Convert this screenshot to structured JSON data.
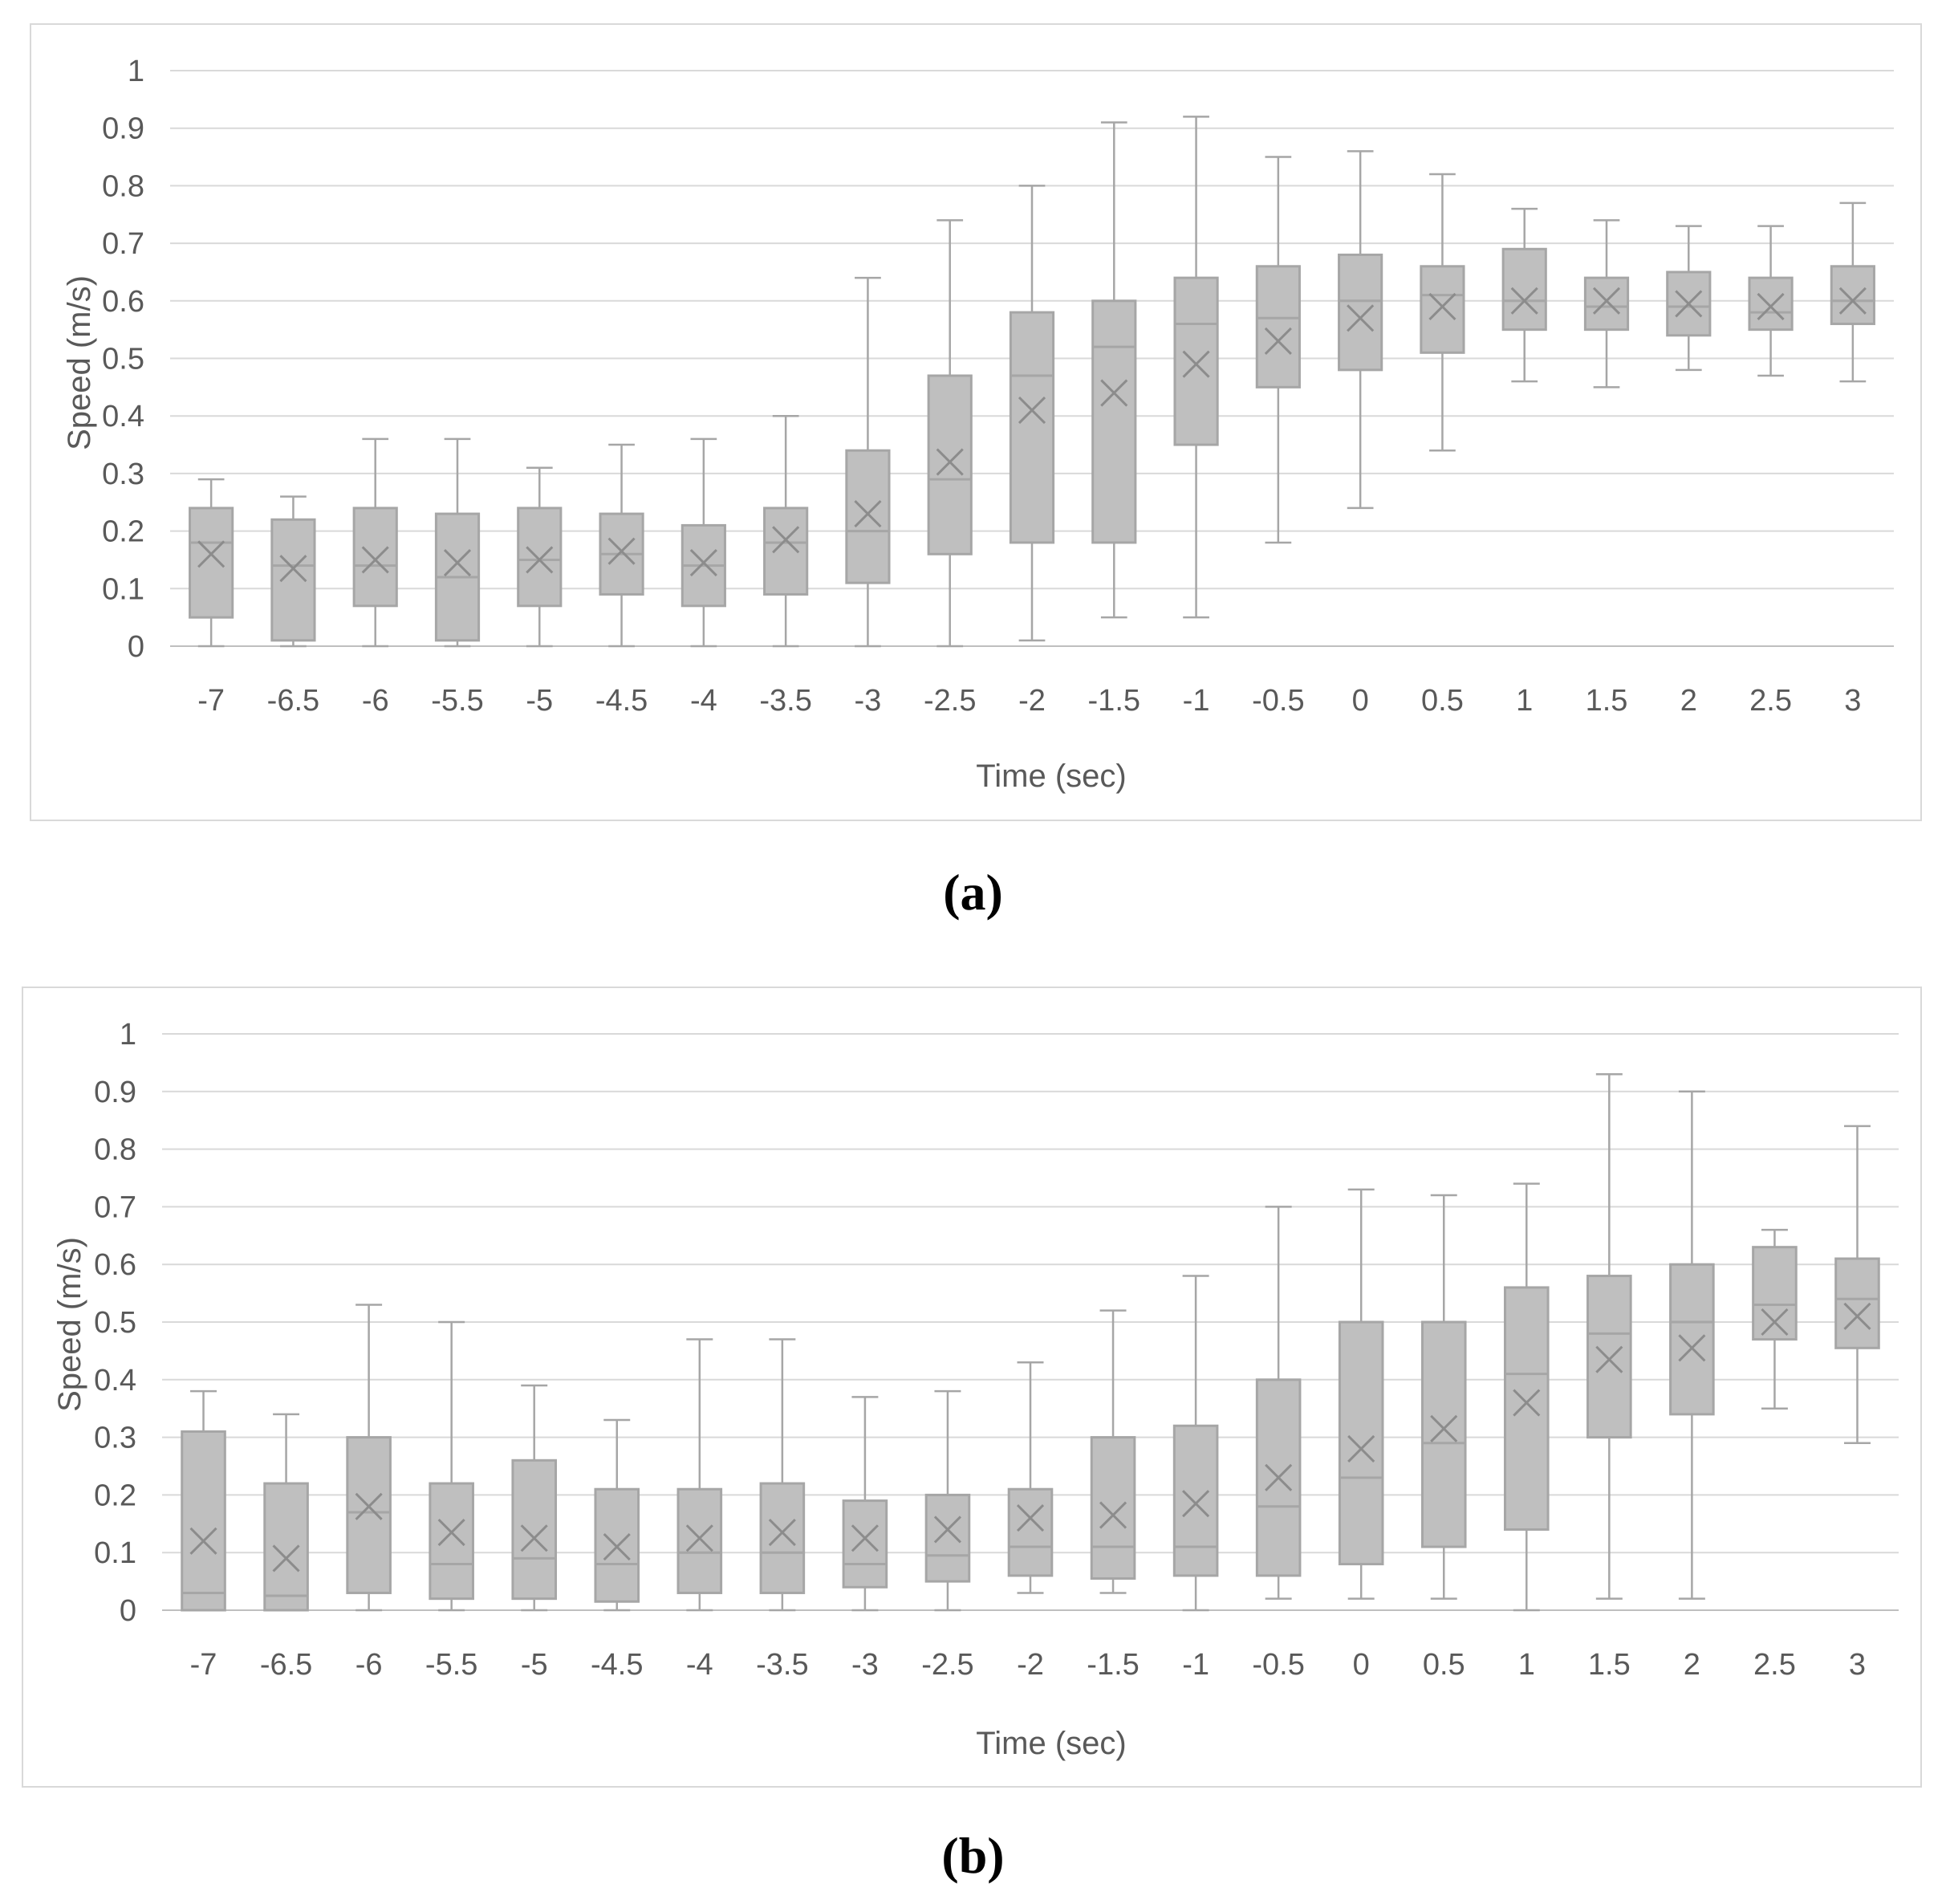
{
  "figure": {
    "captions": [
      "(a)",
      "(b)"
    ]
  },
  "chart_data": [
    {
      "type": "boxplot",
      "panel": "a",
      "xlabel": "Time (sec)",
      "ylabel": "Speed (m/s)",
      "ylim": [
        0,
        1
      ],
      "yticks": [
        "0",
        "0.1",
        "0.2",
        "0.3",
        "0.4",
        "0.5",
        "0.6",
        "0.7",
        "0.8",
        "0.9",
        "1"
      ],
      "grid": true,
      "categories": [
        "-7",
        "-6.5",
        "-6",
        "-5.5",
        "-5",
        "-4.5",
        "-4",
        "-3.5",
        "-3",
        "-2.5",
        "-2",
        "-1.5",
        "-1",
        "-0.5",
        "0",
        "0.5",
        "1",
        "1.5",
        "2",
        "2.5",
        "3"
      ],
      "boxes": [
        {
          "min": 0.0,
          "q1": 0.05,
          "median": 0.18,
          "q3": 0.24,
          "max": 0.29,
          "mean": 0.16
        },
        {
          "min": 0.0,
          "q1": 0.01,
          "median": 0.14,
          "q3": 0.22,
          "max": 0.26,
          "mean": 0.135
        },
        {
          "min": 0.0,
          "q1": 0.07,
          "median": 0.14,
          "q3": 0.24,
          "max": 0.36,
          "mean": 0.15
        },
        {
          "min": 0.0,
          "q1": 0.01,
          "median": 0.12,
          "q3": 0.23,
          "max": 0.36,
          "mean": 0.145
        },
        {
          "min": 0.0,
          "q1": 0.07,
          "median": 0.15,
          "q3": 0.24,
          "max": 0.31,
          "mean": 0.15
        },
        {
          "min": 0.0,
          "q1": 0.09,
          "median": 0.16,
          "q3": 0.23,
          "max": 0.35,
          "mean": 0.165
        },
        {
          "min": 0.0,
          "q1": 0.07,
          "median": 0.14,
          "q3": 0.21,
          "max": 0.36,
          "mean": 0.145
        },
        {
          "min": 0.0,
          "q1": 0.09,
          "median": 0.18,
          "q3": 0.24,
          "max": 0.4,
          "mean": 0.185
        },
        {
          "min": 0.0,
          "q1": 0.11,
          "median": 0.2,
          "q3": 0.34,
          "max": 0.64,
          "mean": 0.23
        },
        {
          "min": 0.0,
          "q1": 0.16,
          "median": 0.29,
          "q3": 0.47,
          "max": 0.74,
          "mean": 0.32
        },
        {
          "min": 0.01,
          "q1": 0.18,
          "median": 0.47,
          "q3": 0.58,
          "max": 0.8,
          "mean": 0.41
        },
        {
          "min": 0.05,
          "q1": 0.18,
          "median": 0.52,
          "q3": 0.6,
          "max": 0.91,
          "mean": 0.44
        },
        {
          "min": 0.05,
          "q1": 0.35,
          "median": 0.56,
          "q3": 0.64,
          "max": 0.92,
          "mean": 0.49
        },
        {
          "min": 0.18,
          "q1": 0.45,
          "median": 0.57,
          "q3": 0.66,
          "max": 0.85,
          "mean": 0.53
        },
        {
          "min": 0.24,
          "q1": 0.48,
          "median": 0.6,
          "q3": 0.68,
          "max": 0.86,
          "mean": 0.57
        },
        {
          "min": 0.34,
          "q1": 0.51,
          "median": 0.61,
          "q3": 0.66,
          "max": 0.82,
          "mean": 0.59
        },
        {
          "min": 0.46,
          "q1": 0.55,
          "median": 0.6,
          "q3": 0.69,
          "max": 0.76,
          "mean": 0.6
        },
        {
          "min": 0.45,
          "q1": 0.55,
          "median": 0.59,
          "q3": 0.64,
          "max": 0.74,
          "mean": 0.6
        },
        {
          "min": 0.48,
          "q1": 0.54,
          "median": 0.59,
          "q3": 0.65,
          "max": 0.73,
          "mean": 0.595
        },
        {
          "min": 0.47,
          "q1": 0.55,
          "median": 0.58,
          "q3": 0.64,
          "max": 0.73,
          "mean": 0.59
        },
        {
          "min": 0.46,
          "q1": 0.56,
          "median": 0.6,
          "q3": 0.66,
          "max": 0.77,
          "mean": 0.6
        }
      ]
    },
    {
      "type": "boxplot",
      "panel": "b",
      "xlabel": "Time (sec)",
      "ylabel": "Speed (m/s)",
      "ylim": [
        0,
        1
      ],
      "yticks": [
        "0",
        "0.1",
        "0.2",
        "0.3",
        "0.4",
        "0.5",
        "0.6",
        "0.7",
        "0.8",
        "0.9",
        "1"
      ],
      "grid": true,
      "categories": [
        "-7",
        "-6.5",
        "-6",
        "-5.5",
        "-5",
        "-4.5",
        "-4",
        "-3.5",
        "-3",
        "-2.5",
        "-2",
        "-1.5",
        "-1",
        "-0.5",
        "0",
        "0.5",
        "1",
        "1.5",
        "2",
        "2.5",
        "3"
      ],
      "boxes": [
        {
          "min": 0.0,
          "q1": 0.0,
          "median": 0.03,
          "q3": 0.31,
          "max": 0.38,
          "mean": 0.12
        },
        {
          "min": 0.0,
          "q1": 0.0,
          "median": 0.025,
          "q3": 0.22,
          "max": 0.34,
          "mean": 0.09
        },
        {
          "min": 0.0,
          "q1": 0.03,
          "median": 0.17,
          "q3": 0.3,
          "max": 0.53,
          "mean": 0.18
        },
        {
          "min": 0.0,
          "q1": 0.02,
          "median": 0.08,
          "q3": 0.22,
          "max": 0.5,
          "mean": 0.135
        },
        {
          "min": 0.0,
          "q1": 0.02,
          "median": 0.09,
          "q3": 0.26,
          "max": 0.39,
          "mean": 0.125
        },
        {
          "min": 0.0,
          "q1": 0.015,
          "median": 0.08,
          "q3": 0.21,
          "max": 0.33,
          "mean": 0.11
        },
        {
          "min": 0.0,
          "q1": 0.03,
          "median": 0.1,
          "q3": 0.21,
          "max": 0.47,
          "mean": 0.125
        },
        {
          "min": 0.0,
          "q1": 0.03,
          "median": 0.1,
          "q3": 0.22,
          "max": 0.47,
          "mean": 0.135
        },
        {
          "min": 0.0,
          "q1": 0.04,
          "median": 0.08,
          "q3": 0.19,
          "max": 0.37,
          "mean": 0.125
        },
        {
          "min": 0.0,
          "q1": 0.05,
          "median": 0.095,
          "q3": 0.2,
          "max": 0.38,
          "mean": 0.14
        },
        {
          "min": 0.03,
          "q1": 0.06,
          "median": 0.11,
          "q3": 0.21,
          "max": 0.43,
          "mean": 0.16
        },
        {
          "min": 0.03,
          "q1": 0.055,
          "median": 0.11,
          "q3": 0.3,
          "max": 0.52,
          "mean": 0.165
        },
        {
          "min": 0.0,
          "q1": 0.06,
          "median": 0.11,
          "q3": 0.32,
          "max": 0.58,
          "mean": 0.185
        },
        {
          "min": 0.02,
          "q1": 0.06,
          "median": 0.18,
          "q3": 0.4,
          "max": 0.7,
          "mean": 0.23
        },
        {
          "min": 0.02,
          "q1": 0.08,
          "median": 0.23,
          "q3": 0.5,
          "max": 0.73,
          "mean": 0.28
        },
        {
          "min": 0.02,
          "q1": 0.11,
          "median": 0.29,
          "q3": 0.5,
          "max": 0.72,
          "mean": 0.315
        },
        {
          "min": 0.0,
          "q1": 0.14,
          "median": 0.41,
          "q3": 0.56,
          "max": 0.74,
          "mean": 0.36
        },
        {
          "min": 0.02,
          "q1": 0.3,
          "median": 0.48,
          "q3": 0.58,
          "max": 0.93,
          "mean": 0.435
        },
        {
          "min": 0.02,
          "q1": 0.34,
          "median": 0.5,
          "q3": 0.6,
          "max": 0.9,
          "mean": 0.455
        },
        {
          "min": 0.35,
          "q1": 0.47,
          "median": 0.53,
          "q3": 0.63,
          "max": 0.66,
          "mean": 0.5
        },
        {
          "min": 0.29,
          "q1": 0.455,
          "median": 0.54,
          "q3": 0.61,
          "max": 0.84,
          "mean": 0.51
        }
      ]
    }
  ]
}
